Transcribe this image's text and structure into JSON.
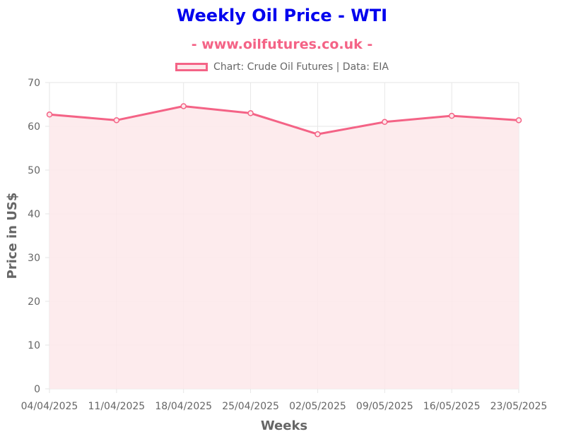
{
  "header": {
    "title": "Weekly Oil Price - WTI",
    "subtitle": "- www.oilfutures.co.uk -",
    "legend_label": "Chart: Crude Oil Futures | Data: EIA"
  },
  "colors": {
    "title": "#0000ee",
    "accent": "#f46386",
    "fill": "#fde8ea",
    "grid": "#e6e6e6",
    "axis_text": "#666666"
  },
  "chart_data": {
    "type": "area",
    "categories": [
      "04/04/2025",
      "11/04/2025",
      "18/04/2025",
      "25/04/2025",
      "02/05/2025",
      "09/05/2025",
      "16/05/2025",
      "23/05/2025"
    ],
    "series": [
      {
        "values": [
          62.7,
          61.4,
          64.6,
          63.0,
          58.2,
          61.0,
          62.4,
          61.4
        ]
      }
    ],
    "xlabel": "Weeks",
    "ylabel": "Price in US$",
    "ylim": [
      0,
      70
    ],
    "yticks": [
      0,
      10,
      20,
      30,
      40,
      50,
      60,
      70
    ],
    "grid": true,
    "legend_position": "top"
  }
}
